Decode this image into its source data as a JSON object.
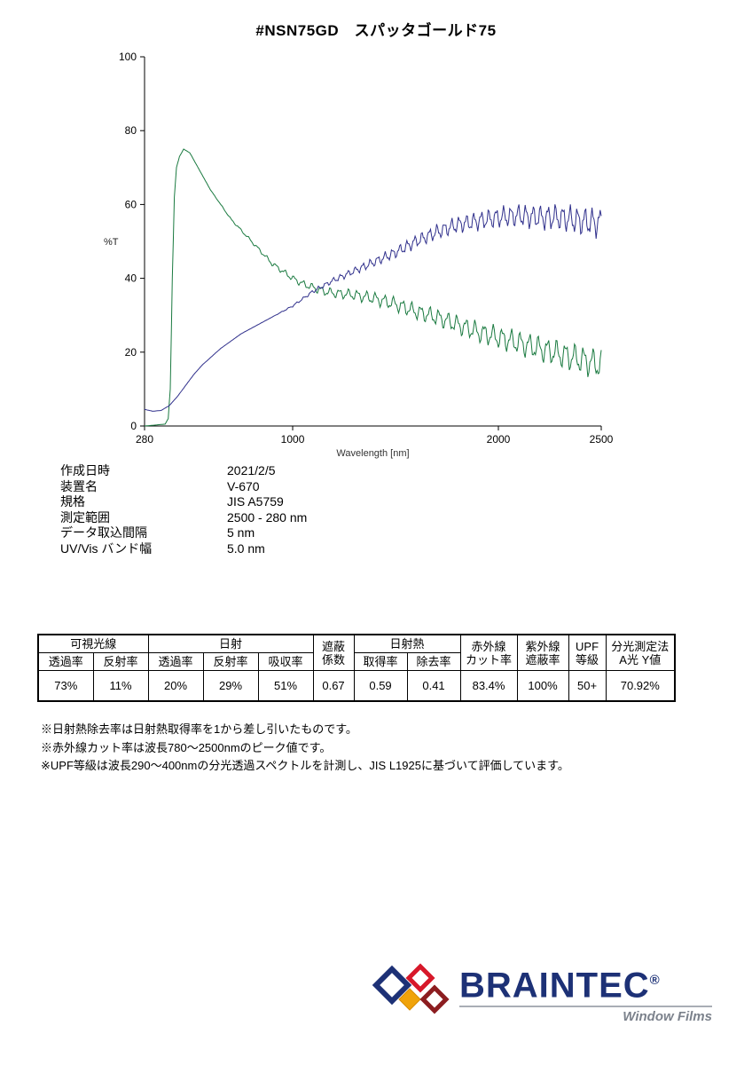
{
  "page": {
    "title": "#NSN75GD　スパッタゴールド75"
  },
  "chart_data": {
    "type": "line",
    "title": "",
    "xlabel": "Wavelength [nm]",
    "ylabel": "%T",
    "xlim": [
      280,
      2500
    ],
    "ylim": [
      0,
      100
    ],
    "x_ticks": [
      280,
      1000,
      2000,
      2500
    ],
    "y_ticks": [
      0,
      20,
      40,
      60,
      80,
      100
    ],
    "grid": false,
    "legend": "none",
    "series": [
      {
        "name": "transmittance-green",
        "color": "#1a7a40",
        "base_points": [
          [
            280,
            0
          ],
          [
            380,
            0.5
          ],
          [
            395,
            2
          ],
          [
            405,
            10
          ],
          [
            415,
            40
          ],
          [
            425,
            62
          ],
          [
            435,
            70
          ],
          [
            450,
            73
          ],
          [
            470,
            75
          ],
          [
            500,
            74
          ],
          [
            530,
            71
          ],
          [
            560,
            68
          ],
          [
            600,
            64
          ],
          [
            650,
            60
          ],
          [
            700,
            56
          ],
          [
            750,
            53
          ],
          [
            800,
            50
          ],
          [
            850,
            47
          ],
          [
            900,
            44
          ],
          [
            950,
            42
          ],
          [
            1000,
            40
          ],
          [
            1050,
            38.5
          ],
          [
            1100,
            37.5
          ],
          [
            1150,
            36.5
          ],
          [
            1200,
            36
          ],
          [
            1300,
            35.5
          ],
          [
            1400,
            34.5
          ],
          [
            1500,
            33
          ],
          [
            1600,
            31
          ],
          [
            1700,
            29.5
          ],
          [
            1800,
            27.5
          ],
          [
            1900,
            25.5
          ],
          [
            2000,
            24
          ],
          [
            2100,
            22.5
          ],
          [
            2200,
            21
          ],
          [
            2300,
            19.5
          ],
          [
            2400,
            18
          ],
          [
            2500,
            16.5
          ]
        ],
        "fringe": {
          "start_nm": 600,
          "period_nm": 44,
          "max_amplitude": 4.5
        }
      },
      {
        "name": "reflectance-navy",
        "color": "#30308c",
        "base_points": [
          [
            280,
            4.5
          ],
          [
            320,
            4
          ],
          [
            360,
            4.2
          ],
          [
            400,
            5.5
          ],
          [
            440,
            8
          ],
          [
            480,
            11
          ],
          [
            520,
            14
          ],
          [
            560,
            16.5
          ],
          [
            600,
            18.5
          ],
          [
            650,
            21
          ],
          [
            700,
            23
          ],
          [
            750,
            25
          ],
          [
            800,
            26.5
          ],
          [
            850,
            28
          ],
          [
            900,
            29.5
          ],
          [
            950,
            31
          ],
          [
            1000,
            32.5
          ],
          [
            1050,
            34.5
          ],
          [
            1100,
            36.5
          ],
          [
            1150,
            38
          ],
          [
            1200,
            39.5
          ],
          [
            1300,
            42
          ],
          [
            1400,
            44.5
          ],
          [
            1500,
            47
          ],
          [
            1600,
            50
          ],
          [
            1700,
            52.5
          ],
          [
            1800,
            54.5
          ],
          [
            1900,
            55.5
          ],
          [
            2000,
            56.5
          ],
          [
            2100,
            57
          ],
          [
            2200,
            56.5
          ],
          [
            2300,
            56.5
          ],
          [
            2400,
            55.5
          ],
          [
            2500,
            55
          ]
        ],
        "fringe": {
          "start_nm": 900,
          "period_nm": 36,
          "max_amplitude": 4.5
        }
      }
    ]
  },
  "metadata": {
    "rows": [
      {
        "label": "作成日時",
        "value": "2021/2/5"
      },
      {
        "label": "装置名",
        "value": "V-670"
      },
      {
        "label": "規格",
        "value": "JIS A5759"
      },
      {
        "label": "測定範囲",
        "value": "2500 - 280 nm"
      },
      {
        "label": "データ取込間隔",
        "value": "5 nm"
      },
      {
        "label": "UV/Vis バンド幅",
        "value": "5.0 nm"
      }
    ]
  },
  "results_table": {
    "group_headers": [
      "可視光線",
      "日射",
      "遮蔽\n係数",
      "日射熱",
      "赤外線\nカット率",
      "紫外線\n遮蔽率",
      "UPF\n等級",
      "分光測定法\nA光 Y値"
    ],
    "sub_headers": [
      "透過率",
      "反射率",
      "透過率",
      "反射率",
      "吸収率",
      "取得率",
      "除去率"
    ],
    "values": [
      "73%",
      "11%",
      "20%",
      "29%",
      "51%",
      "0.67",
      "0.59",
      "0.41",
      "83.4%",
      "100%",
      "50+",
      "70.92%"
    ]
  },
  "footnotes": [
    "※日射熱除去率は日射熱取得率を1から差し引いたものです。",
    "※赤外線カット率は波長780～2500nmのピーク値です。",
    "※UPF等級は波長290～400nmの分光透過スペクトルを計測し、JIS L1925に基づいて評価しています。"
  ],
  "logo": {
    "brand": "BRAINTEC",
    "registered": "®",
    "tagline": "Window Films",
    "colors": {
      "brand_navy": "#1d3176",
      "diamond_red": "#d7182a",
      "diamond_yellow": "#f0a30a",
      "diamond_maroon": "#8c1d20",
      "tagline_gray": "#7c828c"
    }
  }
}
